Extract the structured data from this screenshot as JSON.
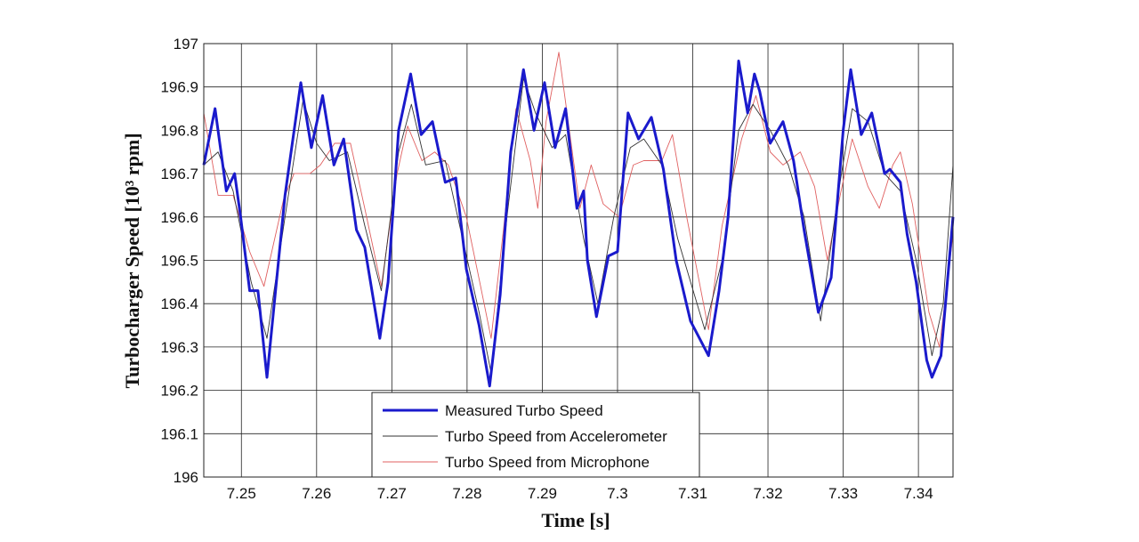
{
  "chart_data": {
    "type": "line",
    "xlabel": "Time [s]",
    "ylabel": "Turbocharger Speed [10³ rpm]",
    "xlim": [
      7.245,
      7.3446
    ],
    "ylim": [
      196,
      197
    ],
    "xticks": [
      7.25,
      7.26,
      7.27,
      7.28,
      7.29,
      7.3,
      7.31,
      7.32,
      7.33,
      7.34
    ],
    "yticks": [
      196,
      196.1,
      196.2,
      196.3,
      196.4,
      196.5,
      196.6,
      196.7,
      196.8,
      196.9,
      197
    ],
    "grid": true,
    "legend": "lower center",
    "series": [
      {
        "name": "Measured Turbo Speed",
        "color": "#1a1acc",
        "x": [
          7.245,
          7.2465,
          7.248,
          7.2491,
          7.2499,
          7.2511,
          7.2522,
          7.2534,
          7.2558,
          7.2579,
          7.2593,
          7.2608,
          7.2623,
          7.2636,
          7.2653,
          7.2664,
          7.2684,
          7.2695,
          7.2709,
          7.2725,
          7.2739,
          7.2754,
          7.2771,
          7.2785,
          7.2799,
          7.2816,
          7.283,
          7.2844,
          7.2858,
          7.2875,
          7.2889,
          7.2903,
          7.2917,
          7.2931,
          7.2946,
          7.2955,
          7.296,
          7.2972,
          7.2988,
          7.3,
          7.3014,
          7.3028,
          7.3045,
          7.3061,
          7.3078,
          7.3097,
          7.3121,
          7.3135,
          7.3147,
          7.3161,
          7.3173,
          7.3182,
          7.3189,
          7.3203,
          7.322,
          7.3234,
          7.3248,
          7.3267,
          7.3284,
          7.33,
          7.331,
          7.3324,
          7.3338,
          7.3355,
          7.3362,
          7.3376,
          7.3385,
          7.3397,
          7.3411,
          7.3418,
          7.343,
          7.3446
        ],
        "values": [
          196.72,
          196.85,
          196.66,
          196.7,
          196.6,
          196.43,
          196.43,
          196.23,
          196.65,
          196.91,
          196.76,
          196.88,
          196.72,
          196.78,
          196.57,
          196.53,
          196.32,
          196.45,
          196.8,
          196.93,
          196.79,
          196.82,
          196.68,
          196.69,
          196.48,
          196.35,
          196.21,
          196.42,
          196.75,
          196.94,
          196.8,
          196.91,
          196.76,
          196.85,
          196.62,
          196.66,
          196.5,
          196.37,
          196.51,
          196.52,
          196.84,
          196.78,
          196.83,
          196.71,
          196.5,
          196.36,
          196.28,
          196.43,
          196.6,
          196.96,
          196.84,
          196.93,
          196.89,
          196.77,
          196.82,
          196.73,
          196.57,
          196.38,
          196.46,
          196.8,
          196.94,
          196.79,
          196.84,
          196.7,
          196.71,
          196.68,
          196.56,
          196.45,
          196.27,
          196.23,
          196.28,
          196.6
        ]
      },
      {
        "name": "Turbo Speed from Accelerometer",
        "color": "#333333",
        "x": [
          7.245,
          7.2469,
          7.2489,
          7.2513,
          7.2534,
          7.2558,
          7.2582,
          7.26,
          7.2617,
          7.2641,
          7.2664,
          7.2686,
          7.2709,
          7.2726,
          7.2745,
          7.2771,
          7.2794,
          7.2816,
          7.2832,
          7.2853,
          7.2875,
          7.2891,
          7.2913,
          7.2931,
          7.2955,
          7.2974,
          7.2995,
          7.3017,
          7.3035,
          7.3059,
          7.308,
          7.3116,
          7.3139,
          7.3161,
          7.318,
          7.3203,
          7.3227,
          7.3248,
          7.327,
          7.3293,
          7.3312,
          7.3333,
          7.3355,
          7.3376,
          7.3397,
          7.3418,
          7.3433,
          7.3446
        ],
        "values": [
          196.72,
          196.75,
          196.66,
          196.45,
          196.32,
          196.6,
          196.87,
          196.77,
          196.73,
          196.75,
          196.58,
          196.43,
          196.75,
          196.86,
          196.72,
          196.73,
          196.55,
          196.38,
          196.24,
          196.6,
          196.92,
          196.84,
          196.76,
          196.79,
          196.55,
          196.4,
          196.6,
          196.76,
          196.78,
          196.72,
          196.55,
          196.34,
          196.5,
          196.8,
          196.86,
          196.8,
          196.72,
          196.6,
          196.36,
          196.65,
          196.85,
          196.82,
          196.7,
          196.66,
          196.5,
          196.28,
          196.4,
          196.72
        ]
      },
      {
        "name": "Turbo Speed from Microphone",
        "color": "#e06060",
        "x": [
          7.245,
          7.2469,
          7.2489,
          7.2511,
          7.253,
          7.2556,
          7.257,
          7.2591,
          7.2605,
          7.2624,
          7.2645,
          7.2664,
          7.2686,
          7.2707,
          7.2721,
          7.274,
          7.2757,
          7.2775,
          7.2799,
          7.2818,
          7.2832,
          7.2849,
          7.2865,
          7.2884,
          7.2894,
          7.2905,
          7.2922,
          7.2936,
          7.295,
          7.2965,
          7.2981,
          7.3002,
          7.3021,
          7.3035,
          7.3059,
          7.3073,
          7.3092,
          7.3121,
          7.3139,
          7.3165,
          7.3184,
          7.3203,
          7.322,
          7.3243,
          7.3262,
          7.3279,
          7.3296,
          7.3312,
          7.3333,
          7.3348,
          7.3366,
          7.3376,
          7.3392,
          7.3414,
          7.3428,
          7.3446
        ],
        "values": [
          196.84,
          196.65,
          196.65,
          196.52,
          196.44,
          196.64,
          196.7,
          196.7,
          196.72,
          196.77,
          196.77,
          196.62,
          196.44,
          196.7,
          196.81,
          196.73,
          196.75,
          196.72,
          196.6,
          196.44,
          196.32,
          196.58,
          196.85,
          196.73,
          196.62,
          196.82,
          196.98,
          196.8,
          196.62,
          196.72,
          196.63,
          196.6,
          196.72,
          196.73,
          196.73,
          196.79,
          196.6,
          196.34,
          196.58,
          196.78,
          196.88,
          196.75,
          196.72,
          196.75,
          196.67,
          196.5,
          196.65,
          196.78,
          196.67,
          196.62,
          196.72,
          196.75,
          196.63,
          196.38,
          196.3,
          196.56
        ]
      }
    ]
  }
}
